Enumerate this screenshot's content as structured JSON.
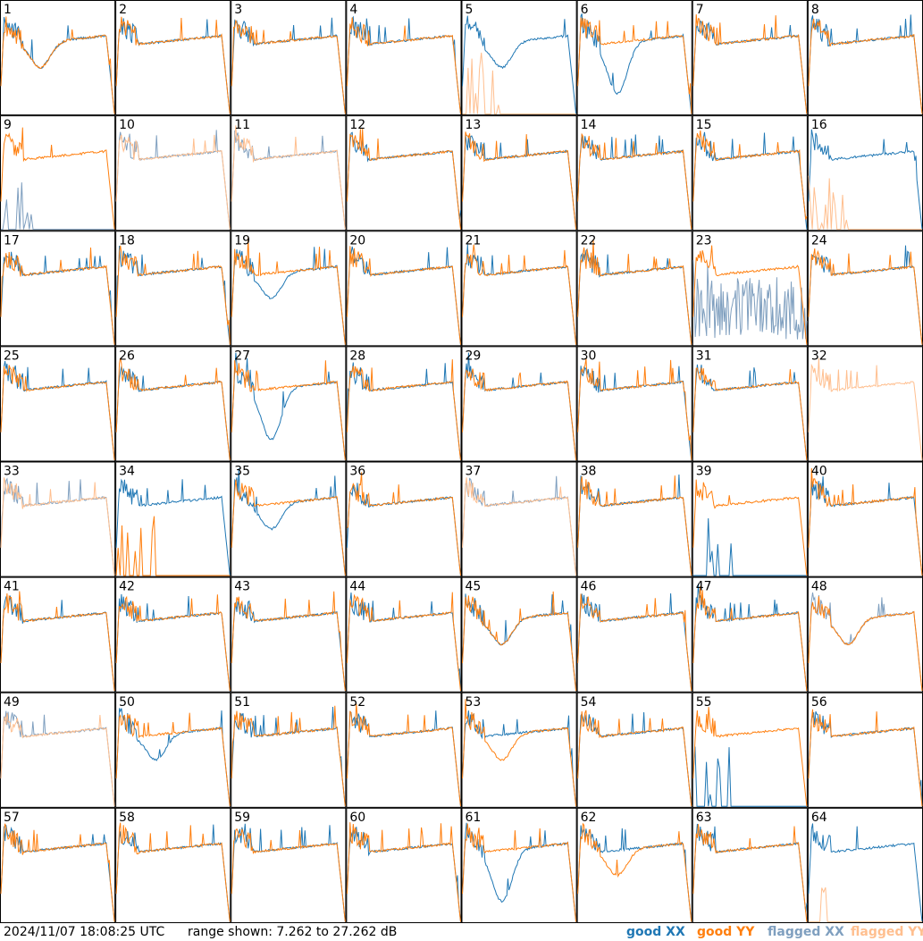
{
  "timestamp": "2024/11/07 18:08:25 UTC",
  "range_text": "range shown: 7.262 to 27.262 dB",
  "legend": [
    {
      "label": "good XX",
      "color": "#1f77b4"
    },
    {
      "label": "good YY",
      "color": "#ff7f0e"
    },
    {
      "label": "flagged XX",
      "color": "#7f9fbf"
    },
    {
      "label": "flagged YY",
      "color": "#ffbf8f"
    }
  ],
  "chart_data": {
    "type": "line",
    "layout": "small-multiples",
    "rows": 8,
    "cols": 8,
    "ylim": [
      7.262,
      27.262
    ],
    "yunit": "dB",
    "series_names": [
      "good XX",
      "good YY",
      "flagged XX",
      "flagged YY"
    ],
    "panels": [
      {
        "label": "1",
        "xx": "dip",
        "yy": "dip",
        "xx_flag": false,
        "yy_flag": false
      },
      {
        "label": "2",
        "xx": "normal",
        "yy": "normal",
        "xx_flag": false,
        "yy_flag": false
      },
      {
        "label": "3",
        "xx": "normal",
        "yy": "normal",
        "xx_flag": false,
        "yy_flag": false
      },
      {
        "label": "4",
        "xx": "normal",
        "yy": "normal",
        "xx_flag": false,
        "yy_flag": false
      },
      {
        "label": "5",
        "xx": "dip",
        "yy": "dead",
        "xx_flag": false,
        "yy_flag": true
      },
      {
        "label": "6",
        "xx": "deepdip",
        "yy": "normal",
        "xx_flag": false,
        "yy_flag": false
      },
      {
        "label": "7",
        "xx": "normal",
        "yy": "normal",
        "xx_flag": false,
        "yy_flag": false
      },
      {
        "label": "8",
        "xx": "normal",
        "yy": "normal",
        "xx_flag": false,
        "yy_flag": false
      },
      {
        "label": "9",
        "xx": "dead",
        "yy": "normal",
        "xx_flag": true,
        "yy_flag": false
      },
      {
        "label": "10",
        "xx": "normal",
        "yy": "normal",
        "xx_flag": true,
        "yy_flag": true
      },
      {
        "label": "11",
        "xx": "normal",
        "yy": "normal",
        "xx_flag": true,
        "yy_flag": true
      },
      {
        "label": "12",
        "xx": "normal",
        "yy": "normal",
        "xx_flag": false,
        "yy_flag": false
      },
      {
        "label": "13",
        "xx": "normal",
        "yy": "normal",
        "xx_flag": false,
        "yy_flag": false
      },
      {
        "label": "14",
        "xx": "normal",
        "yy": "normal",
        "xx_flag": false,
        "yy_flag": false
      },
      {
        "label": "15",
        "xx": "normal",
        "yy": "normal",
        "xx_flag": false,
        "yy_flag": false
      },
      {
        "label": "16",
        "xx": "normal",
        "yy": "dead",
        "xx_flag": false,
        "yy_flag": true
      },
      {
        "label": "17",
        "xx": "normal",
        "yy": "normal",
        "xx_flag": false,
        "yy_flag": false
      },
      {
        "label": "18",
        "xx": "normal",
        "yy": "normal",
        "xx_flag": false,
        "yy_flag": false
      },
      {
        "label": "19",
        "xx": "dip",
        "yy": "normal",
        "xx_flag": false,
        "yy_flag": false
      },
      {
        "label": "20",
        "xx": "normal",
        "yy": "normal",
        "xx_flag": false,
        "yy_flag": false
      },
      {
        "label": "21",
        "xx": "normal",
        "yy": "normal",
        "xx_flag": false,
        "yy_flag": false
      },
      {
        "label": "22",
        "xx": "normal",
        "yy": "normal",
        "xx_flag": false,
        "yy_flag": false
      },
      {
        "label": "23",
        "xx": "noisy",
        "yy": "normal",
        "xx_flag": true,
        "yy_flag": false
      },
      {
        "label": "24",
        "xx": "normal",
        "yy": "normal",
        "xx_flag": false,
        "yy_flag": false
      },
      {
        "label": "25",
        "xx": "normal",
        "yy": "normal",
        "xx_flag": false,
        "yy_flag": false
      },
      {
        "label": "26",
        "xx": "normal",
        "yy": "normal",
        "xx_flag": false,
        "yy_flag": false
      },
      {
        "label": "27",
        "xx": "deepdip",
        "yy": "normal",
        "xx_flag": false,
        "yy_flag": false
      },
      {
        "label": "28",
        "xx": "normal",
        "yy": "normal",
        "xx_flag": false,
        "yy_flag": false
      },
      {
        "label": "29",
        "xx": "normal",
        "yy": "normal",
        "xx_flag": false,
        "yy_flag": false
      },
      {
        "label": "30",
        "xx": "normal",
        "yy": "normal",
        "xx_flag": false,
        "yy_flag": false
      },
      {
        "label": "31",
        "xx": "normal",
        "yy": "normal",
        "xx_flag": false,
        "yy_flag": false
      },
      {
        "label": "32",
        "xx": "none",
        "yy": "normal",
        "xx_flag": true,
        "yy_flag": true
      },
      {
        "label": "33",
        "xx": "normal",
        "yy": "normal",
        "xx_flag": true,
        "yy_flag": true
      },
      {
        "label": "34",
        "xx": "normal",
        "yy": "dead",
        "xx_flag": false,
        "yy_flag": false
      },
      {
        "label": "35",
        "xx": "dip",
        "yy": "normal",
        "xx_flag": false,
        "yy_flag": false
      },
      {
        "label": "36",
        "xx": "normal",
        "yy": "normal",
        "xx_flag": false,
        "yy_flag": false
      },
      {
        "label": "37",
        "xx": "normal",
        "yy": "normal",
        "xx_flag": true,
        "yy_flag": true
      },
      {
        "label": "38",
        "xx": "normal",
        "yy": "normal",
        "xx_flag": false,
        "yy_flag": false
      },
      {
        "label": "39",
        "xx": "dead",
        "yy": "normal",
        "xx_flag": false,
        "yy_flag": false
      },
      {
        "label": "40",
        "xx": "normal",
        "yy": "normal",
        "xx_flag": false,
        "yy_flag": false
      },
      {
        "label": "41",
        "xx": "normal",
        "yy": "normal",
        "xx_flag": false,
        "yy_flag": false
      },
      {
        "label": "42",
        "xx": "normal",
        "yy": "normal",
        "xx_flag": false,
        "yy_flag": false
      },
      {
        "label": "43",
        "xx": "normal",
        "yy": "normal",
        "xx_flag": false,
        "yy_flag": false
      },
      {
        "label": "44",
        "xx": "normal",
        "yy": "normal",
        "xx_flag": false,
        "yy_flag": false
      },
      {
        "label": "45",
        "xx": "dip",
        "yy": "dip",
        "xx_flag": false,
        "yy_flag": false
      },
      {
        "label": "46",
        "xx": "normal",
        "yy": "normal",
        "xx_flag": false,
        "yy_flag": false
      },
      {
        "label": "47",
        "xx": "normal",
        "yy": "normal",
        "xx_flag": false,
        "yy_flag": false
      },
      {
        "label": "48",
        "xx": "dip",
        "yy": "dip",
        "xx_flag": true,
        "yy_flag": false
      },
      {
        "label": "49",
        "xx": "normal",
        "yy": "normal",
        "xx_flag": true,
        "yy_flag": true
      },
      {
        "label": "50",
        "xx": "dip",
        "yy": "normal",
        "xx_flag": false,
        "yy_flag": false
      },
      {
        "label": "51",
        "xx": "normal",
        "yy": "normal",
        "xx_flag": false,
        "yy_flag": false
      },
      {
        "label": "52",
        "xx": "normal",
        "yy": "normal",
        "xx_flag": false,
        "yy_flag": false
      },
      {
        "label": "53",
        "xx": "normal",
        "yy": "dip",
        "xx_flag": false,
        "yy_flag": false
      },
      {
        "label": "54",
        "xx": "normal",
        "yy": "normal",
        "xx_flag": false,
        "yy_flag": false
      },
      {
        "label": "55",
        "xx": "dead",
        "yy": "normal",
        "xx_flag": false,
        "yy_flag": false
      },
      {
        "label": "56",
        "xx": "normal",
        "yy": "normal",
        "xx_flag": false,
        "yy_flag": false
      },
      {
        "label": "57",
        "xx": "normal",
        "yy": "normal",
        "xx_flag": false,
        "yy_flag": false
      },
      {
        "label": "58",
        "xx": "normal",
        "yy": "normal",
        "xx_flag": false,
        "yy_flag": false
      },
      {
        "label": "59",
        "xx": "normal",
        "yy": "normal",
        "xx_flag": false,
        "yy_flag": false
      },
      {
        "label": "60",
        "xx": "normal",
        "yy": "normal",
        "xx_flag": false,
        "yy_flag": false
      },
      {
        "label": "61",
        "xx": "deepdip",
        "yy": "normal",
        "xx_flag": false,
        "yy_flag": false
      },
      {
        "label": "62",
        "xx": "normal",
        "yy": "dip",
        "xx_flag": false,
        "yy_flag": false
      },
      {
        "label": "63",
        "xx": "normal",
        "yy": "normal",
        "xx_flag": false,
        "yy_flag": false
      },
      {
        "label": "64",
        "xx": "normal",
        "yy": "dead",
        "xx_flag": false,
        "yy_flag": true
      }
    ]
  }
}
